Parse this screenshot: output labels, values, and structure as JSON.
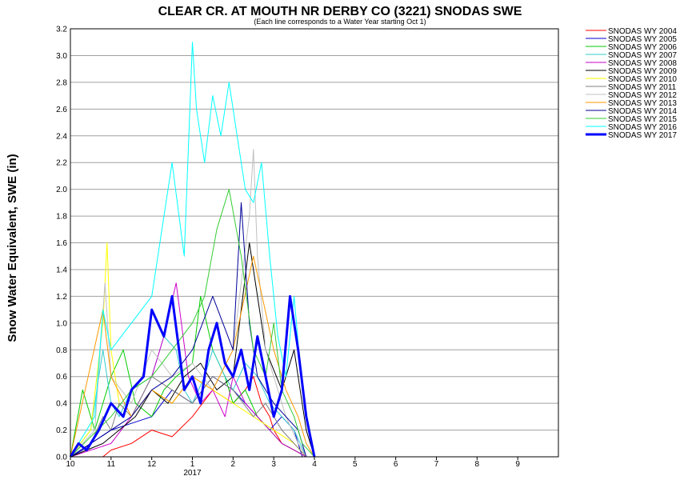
{
  "chart_data": {
    "type": "line",
    "title": "CLEAR CR. AT MOUTH NR DERBY CO (3221) SNODAS SWE",
    "subtitle": "(Each line corresponds to a Water Year starting Oct 1)",
    "xlabel": "",
    "ylabel": "Snow Water Equivalent, SWE (in)",
    "ylim": [
      0,
      3.2
    ],
    "yticks": [
      "0.0",
      "0.2",
      "0.4",
      "0.6",
      "0.8",
      "1.0",
      "1.2",
      "1.4",
      "1.6",
      "1.8",
      "2.0",
      "2.2",
      "2.4",
      "2.6",
      "2.8",
      "3.0",
      "3.2"
    ],
    "xlim": [
      0,
      12
    ],
    "xticks": [
      "10",
      "11",
      "12",
      "1",
      "2",
      "3",
      "4",
      "5",
      "6",
      "7",
      "8",
      "9"
    ],
    "xtick_sublabel": "2017",
    "grid": true,
    "legend_position": "right",
    "series": [
      {
        "name": "SNODAS WY 2004",
        "color": "#ff0000",
        "bold": false,
        "x": [
          0,
          0.8,
          1.0,
          1.5,
          2.0,
          2.5,
          3.0,
          3.5,
          4.0,
          4.3,
          4.5,
          4.7,
          4.9,
          5.0,
          5.2,
          5.5,
          5.8,
          6.0
        ],
        "y": [
          0,
          0,
          0.05,
          0.1,
          0.2,
          0.15,
          0.3,
          0.5,
          0.4,
          0.5,
          0.6,
          0.4,
          0.3,
          0.2,
          0.1,
          0.05,
          0,
          0
        ]
      },
      {
        "name": "SNODAS WY 2005",
        "color": "#0000cc",
        "bold": false,
        "x": [
          0,
          0.3,
          0.5,
          1.0,
          1.5,
          2.0,
          2.5,
          3.0,
          3.5,
          4.0,
          4.3,
          4.6,
          4.9,
          5.2,
          5.5,
          5.7,
          6.0
        ],
        "y": [
          0,
          0.05,
          0.1,
          0.2,
          0.25,
          0.3,
          0.5,
          0.4,
          0.6,
          0.5,
          0.4,
          0.3,
          0.2,
          0.3,
          0.2,
          0,
          0
        ]
      },
      {
        "name": "SNODAS WY 2006",
        "color": "#00cc00",
        "bold": false,
        "x": [
          0,
          0.3,
          0.6,
          1.0,
          1.3,
          1.6,
          2.0,
          2.3,
          2.6,
          3.0,
          3.2,
          3.5,
          3.8,
          4.0,
          4.3,
          4.6,
          4.9,
          5.2,
          5.5,
          5.8,
          6.0
        ],
        "y": [
          0,
          0.5,
          0.2,
          0.6,
          0.8,
          0.4,
          0.3,
          0.5,
          0.6,
          0.7,
          1.2,
          0.8,
          0.6,
          0.4,
          0.5,
          0.3,
          0.2,
          0.1,
          0.05,
          0,
          0
        ]
      },
      {
        "name": "SNODAS WY 2007",
        "color": "#33cccc",
        "bold": false,
        "x": [
          0,
          0.5,
          0.8,
          1.0,
          1.2,
          1.5,
          2.0,
          2.3,
          2.6,
          2.8,
          3.0,
          3.3,
          3.5,
          3.8,
          4.0,
          4.3,
          4.6,
          4.9,
          5.2,
          5.5,
          5.8,
          6.0
        ],
        "y": [
          0,
          0.2,
          0.8,
          0.4,
          0.3,
          0.5,
          0.6,
          0.9,
          0.8,
          0.5,
          0.4,
          0.6,
          0.8,
          0.6,
          0.5,
          0.7,
          0.6,
          0.4,
          0.3,
          0.2,
          0,
          0
        ]
      },
      {
        "name": "SNODAS WY 2008",
        "color": "#cc00cc",
        "bold": false,
        "x": [
          0,
          1.0,
          1.5,
          2.0,
          2.3,
          2.6,
          2.9,
          3.2,
          3.5,
          3.8,
          4.0,
          4.3,
          4.6,
          4.9,
          5.2,
          5.5,
          5.8
        ],
        "y": [
          0,
          0.1,
          0.3,
          0.6,
          0.9,
          1.3,
          0.6,
          0.4,
          0.5,
          0.3,
          0.6,
          0.4,
          0.3,
          0.2,
          0.1,
          0.05,
          0
        ]
      },
      {
        "name": "SNODAS WY 2009",
        "color": "#000000",
        "bold": false,
        "x": [
          0,
          0.8,
          1.2,
          1.6,
          2.0,
          2.4,
          2.8,
          3.2,
          3.6,
          4.0,
          4.4,
          4.8,
          5.2,
          5.5,
          5.8,
          6.0
        ],
        "y": [
          0,
          0.1,
          0.2,
          0.3,
          0.5,
          0.4,
          0.6,
          0.7,
          0.5,
          0.6,
          1.6,
          0.8,
          0.5,
          0.8,
          0.2,
          0
        ]
      },
      {
        "name": "SNODAS WY 2010",
        "color": "#ffff00",
        "bold": false,
        "x": [
          0,
          0.5,
          0.8,
          0.9,
          1.0,
          1.2,
          1.5,
          2.0,
          2.5,
          3.0,
          3.5,
          4.0,
          4.5,
          5.0,
          5.5,
          5.8
        ],
        "y": [
          0,
          0.2,
          1.0,
          1.6,
          0.8,
          0.4,
          0.3,
          0.5,
          0.4,
          0.6,
          0.5,
          0.4,
          0.3,
          0.2,
          0.1,
          0
        ]
      },
      {
        "name": "SNODAS WY 2011",
        "color": "#808080",
        "bold": false,
        "x": [
          0,
          0.5,
          0.8,
          1.0,
          1.2,
          1.5,
          2.0,
          2.5,
          3.0,
          3.5,
          4.0,
          4.5,
          4.8,
          5.0,
          5.2,
          5.5,
          5.8
        ],
        "y": [
          0,
          0.1,
          0.3,
          0.2,
          0.4,
          0.3,
          0.6,
          0.5,
          0.4,
          0.6,
          0.5,
          0.3,
          0.4,
          0.3,
          0.2,
          0.1,
          0
        ]
      },
      {
        "name": "SNODAS WY 2012",
        "color": "#c0c0c0",
        "bold": false,
        "x": [
          0,
          0.6,
          0.85,
          1.0,
          1.5,
          2.0,
          2.5,
          3.0,
          3.5,
          4.0,
          4.4,
          4.5,
          4.6,
          4.8,
          5.0,
          5.3,
          5.6,
          5.8
        ],
        "y": [
          0,
          0.2,
          1.3,
          0.6,
          0.4,
          0.8,
          0.6,
          0.7,
          0.5,
          0.8,
          1.8,
          2.3,
          1.5,
          0.8,
          0.6,
          0.3,
          0.1,
          0
        ]
      },
      {
        "name": "SNODAS WY 2013",
        "color": "#ff9900",
        "bold": false,
        "x": [
          0,
          0.8,
          1.0,
          1.5,
          2.0,
          2.5,
          3.0,
          3.5,
          4.0,
          4.5,
          5.0,
          5.3,
          5.6,
          5.8,
          6.0
        ],
        "y": [
          0,
          1.1,
          0.6,
          0.3,
          0.5,
          0.4,
          0.6,
          0.5,
          0.8,
          1.5,
          0.8,
          0.5,
          0.3,
          0.1,
          0
        ]
      },
      {
        "name": "SNODAS WY 2014",
        "color": "#000099",
        "bold": false,
        "x": [
          0,
          0.5,
          1.0,
          1.5,
          2.0,
          2.5,
          3.0,
          3.5,
          4.0,
          4.2,
          4.4,
          4.6,
          4.8,
          5.0,
          5.3,
          5.6,
          5.8
        ],
        "y": [
          0,
          0.1,
          0.2,
          0.3,
          0.5,
          0.6,
          0.8,
          1.2,
          0.8,
          1.9,
          1.0,
          0.6,
          0.5,
          0.4,
          0.3,
          0.2,
          0
        ]
      },
      {
        "name": "SNODAS WY 2015",
        "color": "#33cc33",
        "bold": false,
        "x": [
          0,
          1.0,
          1.5,
          2.0,
          2.5,
          3.0,
          3.3,
          3.6,
          3.9,
          4.2,
          4.5,
          4.8,
          5.0,
          5.2,
          5.5,
          5.7,
          6.0
        ],
        "y": [
          0,
          0.3,
          0.5,
          0.6,
          0.8,
          1.0,
          1.2,
          1.7,
          2.0,
          1.5,
          0.8,
          0.6,
          1.0,
          0.5,
          0.3,
          0.1,
          0
        ]
      },
      {
        "name": "SNODAS WY 2016",
        "color": "#00ffff",
        "bold": false,
        "x": [
          0,
          0.6,
          0.8,
          1.0,
          1.5,
          2.0,
          2.5,
          2.8,
          3.0,
          3.1,
          3.3,
          3.5,
          3.7,
          3.9,
          4.1,
          4.3,
          4.5,
          4.7,
          4.9,
          5.1,
          5.3,
          5.5,
          5.7,
          6.0
        ],
        "y": [
          0,
          0.3,
          1.1,
          0.8,
          1.0,
          1.2,
          2.2,
          1.5,
          3.1,
          2.6,
          2.2,
          2.7,
          2.4,
          2.8,
          2.4,
          2.0,
          1.9,
          2.2,
          1.5,
          0.9,
          0.6,
          1.2,
          0.5,
          0
        ]
      },
      {
        "name": "SNODAS WY 2017",
        "color": "#0000ff",
        "bold": true,
        "x": [
          0,
          0.2,
          0.4,
          0.7,
          1.0,
          1.3,
          1.5,
          1.8,
          2.0,
          2.3,
          2.5,
          2.8,
          3.0,
          3.2,
          3.4,
          3.6,
          3.8,
          4.0,
          4.2,
          4.4,
          4.6,
          4.8,
          5.0,
          5.2,
          5.4,
          5.6,
          5.8,
          6.0
        ],
        "y": [
          0,
          0.1,
          0.05,
          0.2,
          0.4,
          0.3,
          0.5,
          0.6,
          1.1,
          0.9,
          1.2,
          0.5,
          0.6,
          0.4,
          0.8,
          1.0,
          0.7,
          0.6,
          0.8,
          0.5,
          0.9,
          0.6,
          0.3,
          0.5,
          1.2,
          0.8,
          0.3,
          0
        ]
      }
    ]
  }
}
